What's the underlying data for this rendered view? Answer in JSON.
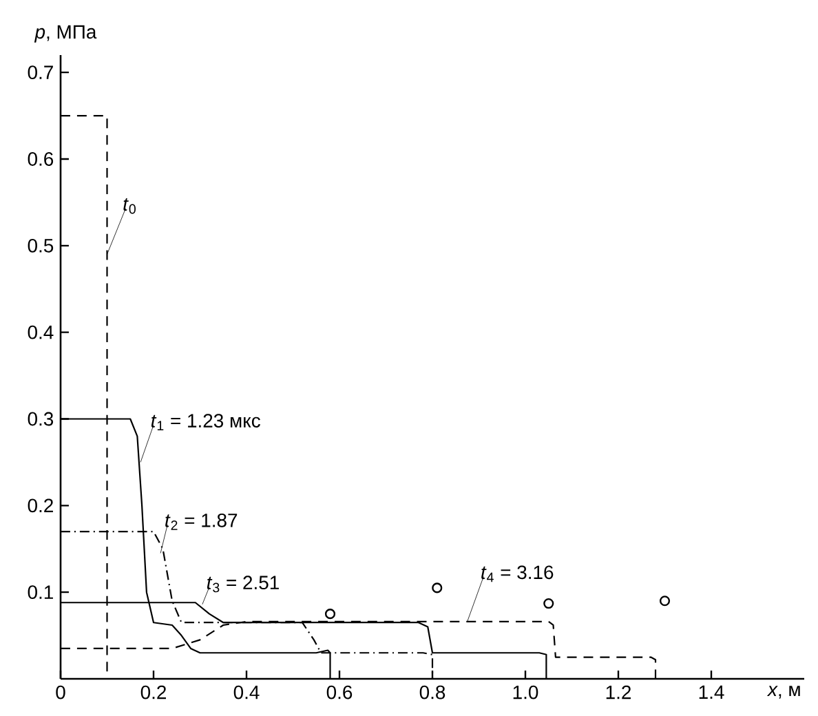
{
  "chart_data": {
    "type": "line",
    "xlabel": "*x*, м",
    "ylabel": "*p*, МПа",
    "xlim": [
      0,
      1.6
    ],
    "ylim": [
      0,
      0.72
    ],
    "xticks": [
      0,
      0.2,
      0.4,
      0.6,
      0.8,
      {
        "value": 1.0,
        "label": "1.0"
      },
      1.2,
      1.4
    ],
    "yticks": [
      0.1,
      0.2,
      0.3,
      0.4,
      0.5,
      0.6,
      0.7
    ],
    "grid": false,
    "marker": "none",
    "series": [
      {
        "name": "*t*$_{0}$",
        "color": "#000000",
        "line_style": "dashed",
        "x": [
          0,
          0.1,
          0.1
        ],
        "values": [
          0.65,
          0.65,
          0
        ]
      },
      {
        "name": "*t*$_{1}$ = 1.23 мкс",
        "color": "#000000",
        "line_style": "solid",
        "x": [
          0,
          0.15,
          0.165,
          0.175,
          0.185,
          0.2,
          0.24,
          0.26,
          0.28,
          0.3,
          0.55,
          0.575,
          0.58,
          0.58
        ],
        "values": [
          0.3,
          0.3,
          0.28,
          0.2,
          0.1,
          0.065,
          0.062,
          0.05,
          0.035,
          0.03,
          0.03,
          0.033,
          0.03,
          0
        ]
      },
      {
        "name": "*t*$_{2}$ = 1.87",
        "color": "#000000",
        "line_style": "dashdot",
        "x": [
          0,
          0.2,
          0.22,
          0.24,
          0.26,
          0.52,
          0.545,
          0.56,
          0.78,
          0.8,
          0.8
        ],
        "values": [
          0.17,
          0.17,
          0.15,
          0.09,
          0.065,
          0.065,
          0.045,
          0.03,
          0.03,
          0.028,
          0
        ]
      },
      {
        "name": "*t*$_{3}$ = 2.51",
        "color": "#000000",
        "line_style": "solid",
        "x": [
          0,
          0.29,
          0.32,
          0.35,
          0.77,
          0.79,
          0.8,
          1.03,
          1.045,
          1.045
        ],
        "values": [
          0.088,
          0.088,
          0.075,
          0.065,
          0.065,
          0.06,
          0.03,
          0.03,
          0.028,
          0
        ]
      },
      {
        "name": "*t*$_{4}$ = 3.16",
        "color": "#000000",
        "line_style": "dashed",
        "x": [
          0,
          0.24,
          0.3,
          0.35,
          0.4,
          1.05,
          1.06,
          1.065,
          1.27,
          1.28,
          1.28
        ],
        "values": [
          0.035,
          0.035,
          0.045,
          0.062,
          0.066,
          0.066,
          0.062,
          0.025,
          0.025,
          0.022,
          0
        ]
      },
      {
        "type": "scatter",
        "color": "#000000",
        "marker": "circle",
        "x": [
          0.58,
          0.81,
          1.05,
          1.3
        ],
        "values": [
          0.075,
          0.105,
          0.087,
          0.09
        ]
      }
    ]
  }
}
